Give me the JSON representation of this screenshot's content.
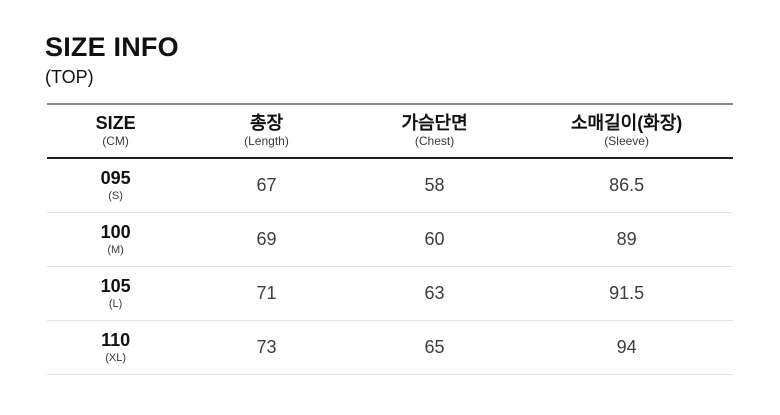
{
  "page": {
    "title": "SIZE INFO",
    "subtitle": "(TOP)"
  },
  "table": {
    "columns": [
      {
        "label": "SIZE",
        "sublabel": "(CM)"
      },
      {
        "label": "총장",
        "sublabel": "(Length)"
      },
      {
        "label": "가슴단면",
        "sublabel": "(Chest)"
      },
      {
        "label": "소매길이(화장)",
        "sublabel": "(Sleeve)"
      }
    ],
    "rows": [
      {
        "size": "095",
        "size_sub": "(S)",
        "length": "67",
        "chest": "58",
        "sleeve": "86.5"
      },
      {
        "size": "100",
        "size_sub": "(M)",
        "length": "69",
        "chest": "60",
        "sleeve": "89"
      },
      {
        "size": "105",
        "size_sub": "(L)",
        "length": "71",
        "chest": "63",
        "sleeve": "91.5"
      },
      {
        "size": "110",
        "size_sub": "(XL)",
        "length": "73",
        "chest": "65",
        "sleeve": "94"
      }
    ]
  },
  "colors": {
    "top_border": "#8a8a8a",
    "header_border": "#1f1f1f",
    "row_border": "#e2e2e2",
    "text_primary": "#111111",
    "text_value": "#3d3d3d",
    "text_sub": "#3a3a3a",
    "bg": "#ffffff"
  }
}
